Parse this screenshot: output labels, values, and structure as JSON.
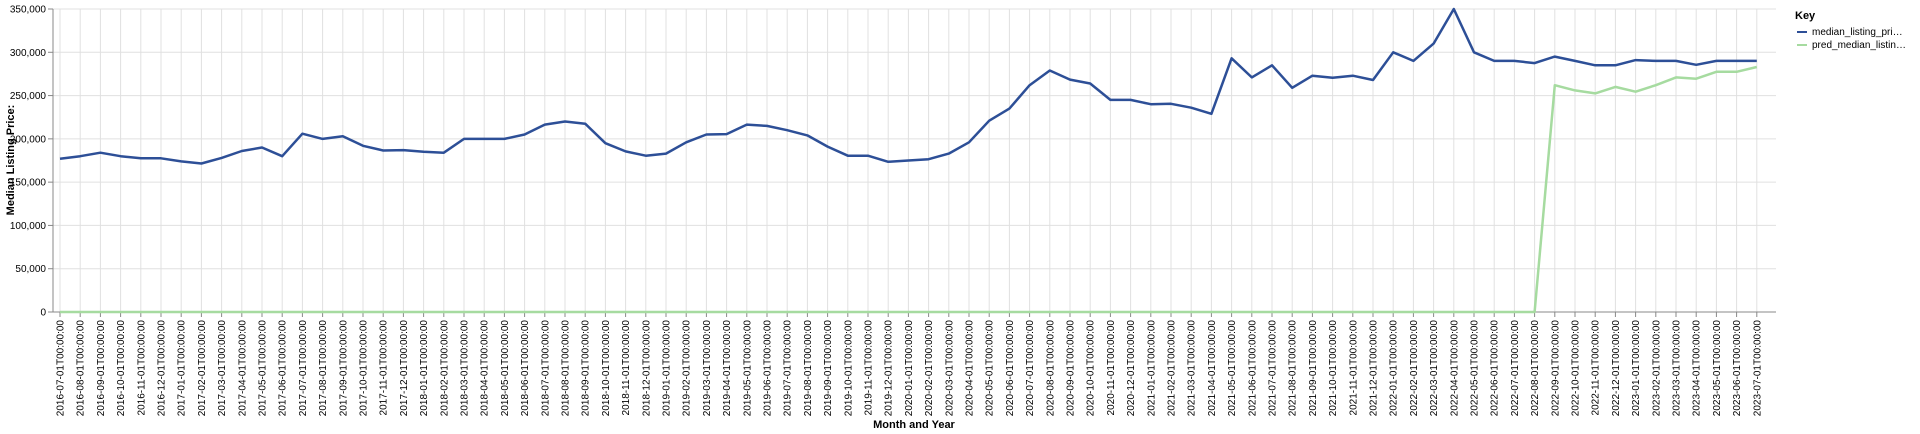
{
  "chart_data": {
    "type": "line",
    "xlabel": "Month and Year",
    "ylabel": "Median Listing Price:",
    "ylim": [
      0,
      350000
    ],
    "yticks": [
      "0",
      "50,000",
      "100,000",
      "150,000",
      "200,000",
      "250,000",
      "300,000",
      "350,000"
    ],
    "grid": true,
    "legend": {
      "title": "Key",
      "placement": "top-right",
      "entries": [
        "median_listing_pri…",
        "pred_median_listin…"
      ]
    },
    "colors": {
      "median_listing_price": "#2d4f97",
      "pred_median_listing_price": "#a6dba0",
      "grid": "#e0e0e0",
      "axis": "#888888"
    },
    "x": [
      "2016-07-01T00:00:00",
      "2016-08-01T00:00:00",
      "2016-09-01T00:00:00",
      "2016-10-01T00:00:00",
      "2016-11-01T00:00:00",
      "2016-12-01T00:00:00",
      "2017-01-01T00:00:00",
      "2017-02-01T00:00:00",
      "2017-03-01T00:00:00",
      "2017-04-01T00:00:00",
      "2017-05-01T00:00:00",
      "2017-06-01T00:00:00",
      "2017-07-01T00:00:00",
      "2017-08-01T00:00:00",
      "2017-09-01T00:00:00",
      "2017-10-01T00:00:00",
      "2017-11-01T00:00:00",
      "2017-12-01T00:00:00",
      "2018-01-01T00:00:00",
      "2018-02-01T00:00:00",
      "2018-03-01T00:00:00",
      "2018-04-01T00:00:00",
      "2018-05-01T00:00:00",
      "2018-06-01T00:00:00",
      "2018-07-01T00:00:00",
      "2018-08-01T00:00:00",
      "2018-09-01T00:00:00",
      "2018-10-01T00:00:00",
      "2018-11-01T00:00:00",
      "2018-12-01T00:00:00",
      "2019-01-01T00:00:00",
      "2019-02-01T00:00:00",
      "2019-03-01T00:00:00",
      "2019-04-01T00:00:00",
      "2019-05-01T00:00:00",
      "2019-06-01T00:00:00",
      "2019-07-01T00:00:00",
      "2019-08-01T00:00:00",
      "2019-09-01T00:00:00",
      "2019-10-01T00:00:00",
      "2019-11-01T00:00:00",
      "2019-12-01T00:00:00",
      "2020-01-01T00:00:00",
      "2020-02-01T00:00:00",
      "2020-03-01T00:00:00",
      "2020-04-01T00:00:00",
      "2020-05-01T00:00:00",
      "2020-06-01T00:00:00",
      "2020-07-01T00:00:00",
      "2020-08-01T00:00:00",
      "2020-09-01T00:00:00",
      "2020-10-01T00:00:00",
      "2020-11-01T00:00:00",
      "2020-12-01T00:00:00",
      "2021-01-01T00:00:00",
      "2021-02-01T00:00:00",
      "2021-03-01T00:00:00",
      "2021-04-01T00:00:00",
      "2021-05-01T00:00:00",
      "2021-06-01T00:00:00",
      "2021-07-01T00:00:00",
      "2021-08-01T00:00:00",
      "2021-09-01T00:00:00",
      "2021-10-01T00:00:00",
      "2021-11-01T00:00:00",
      "2021-12-01T00:00:00",
      "2022-01-01T00:00:00",
      "2022-02-01T00:00:00",
      "2022-03-01T00:00:00",
      "2022-04-01T00:00:00",
      "2022-05-01T00:00:00",
      "2022-06-01T00:00:00",
      "2022-07-01T00:00:00",
      "2022-08-01T00:00:00",
      "2022-09-01T00:00:00",
      "2022-10-01T00:00:00",
      "2022-11-01T00:00:00",
      "2022-12-01T00:00:00",
      "2023-01-01T00:00:00",
      "2023-02-01T00:00:00",
      "2023-03-01T00:00:00",
      "2023-04-01T00:00:00",
      "2023-05-01T00:00:00",
      "2023-06-01T00:00:00",
      "2023-07-01T00:00:00"
    ],
    "series": [
      {
        "name": "median_listing_pri…",
        "values": [
          177000,
          180000,
          184000,
          180000,
          177500,
          177500,
          174000,
          171500,
          178000,
          186000,
          190000,
          180000,
          206000,
          200000,
          203000,
          192000,
          186500,
          187000,
          185000,
          184000,
          200000,
          200000,
          200000,
          205000,
          216500,
          220000,
          217500,
          195000,
          185500,
          180500,
          183000,
          196000,
          205000,
          205500,
          216500,
          215000,
          210000,
          204000,
          191000,
          180500,
          180500,
          173500,
          175000,
          176500,
          183000,
          196000,
          221000,
          235000,
          262000,
          279000,
          268500,
          264000,
          245000,
          245000,
          240000,
          240500,
          236000,
          229000,
          293000,
          271000,
          285000,
          259000,
          273000,
          270500,
          273000,
          268000,
          300000,
          290000,
          310000,
          350000,
          300000,
          290000,
          290000,
          287500,
          295000,
          290000,
          285000,
          285000,
          291000,
          290000,
          290000,
          285500,
          290000,
          290000,
          290000
        ]
      },
      {
        "name": "pred_median_listin…",
        "values": [
          0,
          0,
          0,
          0,
          0,
          0,
          0,
          0,
          0,
          0,
          0,
          0,
          0,
          0,
          0,
          0,
          0,
          0,
          0,
          0,
          0,
          0,
          0,
          0,
          0,
          0,
          0,
          0,
          0,
          0,
          0,
          0,
          0,
          0,
          0,
          0,
          0,
          0,
          0,
          0,
          0,
          0,
          0,
          0,
          0,
          0,
          0,
          0,
          0,
          0,
          0,
          0,
          0,
          0,
          0,
          0,
          0,
          0,
          0,
          0,
          0,
          0,
          0,
          0,
          0,
          0,
          0,
          0,
          0,
          0,
          0,
          0,
          0,
          0,
          262000,
          256000,
          252500,
          260000,
          254500,
          262000,
          271000,
          269500,
          277500,
          277500,
          283000
        ]
      }
    ]
  }
}
